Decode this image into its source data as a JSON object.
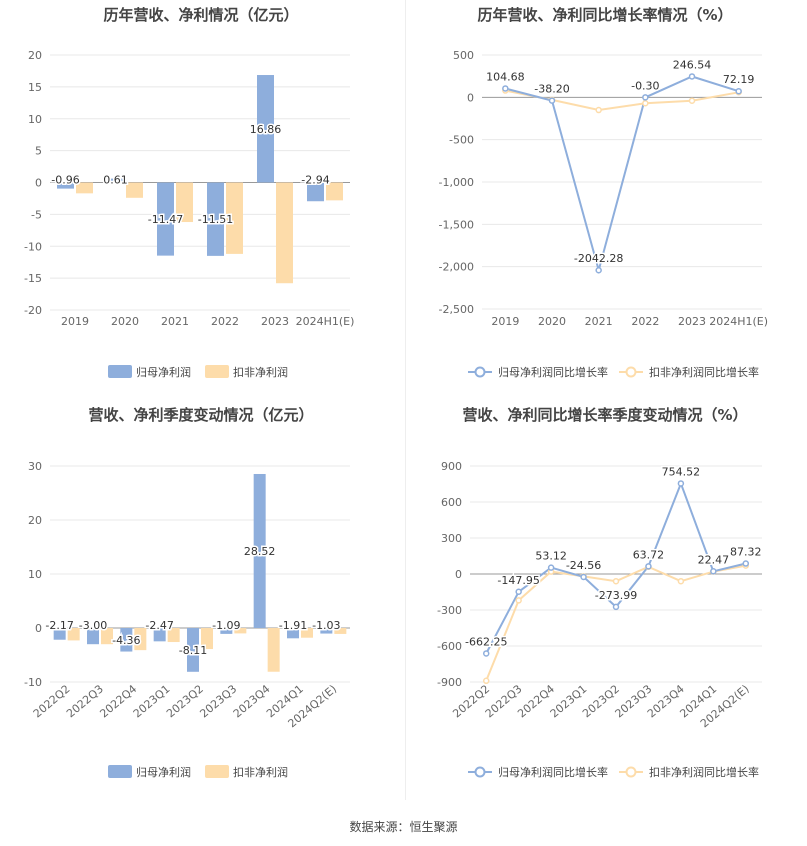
{
  "source_label": "数据来源：恒生聚源",
  "colors": {
    "blue": "#8eaedc",
    "orange": "#fddcaa",
    "line_blue": "#8eaedc",
    "line_orange": "#fddcaa"
  },
  "chart_data": [
    {
      "type": "bar",
      "title": "历年营收、净利情况（亿元）",
      "categories": [
        "2019",
        "2020",
        "2021",
        "2022",
        "2023",
        "2024H1(E)"
      ],
      "series": [
        {
          "name": "归母净利润",
          "values": [
            -0.96,
            0.61,
            -11.47,
            -11.51,
            16.86,
            -2.94
          ]
        },
        {
          "name": "扣非净利润",
          "values": [
            -1.7,
            -2.4,
            -6.2,
            -11.2,
            -15.8,
            -2.8
          ]
        }
      ],
      "data_labels": [
        "-0.96",
        "0.61",
        "-11.47",
        "-11.51",
        "16.86",
        "-2.94"
      ],
      "ylim": [
        -20,
        20
      ],
      "yticks": [
        "20",
        "15",
        "10",
        "5",
        "0",
        "-5",
        "-10",
        "-15",
        "-20"
      ],
      "ytick_values": [
        20,
        15,
        10,
        5,
        0,
        -5,
        -10,
        -15,
        -20
      ],
      "legend": "bottom"
    },
    {
      "type": "line",
      "title": "历年营收、净利同比增长率情况（%）",
      "categories": [
        "2019",
        "2020",
        "2021",
        "2022",
        "2023",
        "2024H1(E)"
      ],
      "series": [
        {
          "name": "归母净利润同比增长率",
          "values": [
            104.68,
            -38.2,
            -2042.28,
            -0.3,
            246.54,
            72.19
          ]
        },
        {
          "name": "扣非净利润同比增长率",
          "values": [
            80,
            -30,
            -150,
            -70,
            -40,
            60
          ]
        }
      ],
      "data_labels": [
        "104.68",
        "-38.20",
        "-2042.28",
        "-0.30",
        "246.54",
        "72.19"
      ],
      "ylim": [
        -2500,
        500
      ],
      "yticks": [
        "500",
        "0",
        "-500",
        "-1,000",
        "-1,500",
        "-2,000",
        "-2,500"
      ],
      "ytick_values": [
        500,
        0,
        -500,
        -1000,
        -1500,
        -2000,
        -2500
      ],
      "legend": "bottom"
    },
    {
      "type": "bar",
      "title": "营收、净利季度变动情况（亿元）",
      "categories": [
        "2022Q2",
        "2022Q3",
        "2022Q4",
        "2023Q1",
        "2023Q2",
        "2023Q3",
        "2023Q4",
        "2024Q1",
        "2024Q2(E)"
      ],
      "series": [
        {
          "name": "归母净利润",
          "values": [
            -2.17,
            -3.0,
            -4.36,
            -2.47,
            -8.11,
            -1.09,
            28.52,
            -1.91,
            -1.03
          ]
        },
        {
          "name": "扣非净利润",
          "values": [
            -2.3,
            -3.0,
            -4.1,
            -2.6,
            -3.9,
            -1.0,
            -8.1,
            -1.8,
            -1.1
          ]
        }
      ],
      "data_labels": [
        "-2.17",
        "-3.00",
        "-4.36",
        "-2.47",
        "-8.11",
        "-1.09",
        "28.52",
        "-1.91",
        "-1.03"
      ],
      "ylim": [
        -10,
        30
      ],
      "yticks": [
        "30",
        "20",
        "10",
        "0",
        "-10"
      ],
      "ytick_values": [
        30,
        20,
        10,
        0,
        -10
      ],
      "legend": "bottom"
    },
    {
      "type": "line",
      "title": "营收、净利同比增长率季度变动情况（%）",
      "categories": [
        "2022Q2",
        "2022Q3",
        "2022Q4",
        "2023Q1",
        "2023Q2",
        "2023Q3",
        "2023Q4",
        "2024Q1",
        "2024Q2(E)"
      ],
      "series": [
        {
          "name": "归母净利润同比增长率",
          "values": [
            -662.25,
            -147.95,
            53.12,
            -24.56,
            -273.99,
            63.72,
            754.52,
            22.47,
            87.32
          ]
        },
        {
          "name": "扣非净利润同比增长率",
          "values": [
            -890,
            -220,
            20,
            -20,
            -60,
            60,
            -60,
            20,
            70
          ]
        }
      ],
      "data_labels": [
        "-662.25",
        "-147.95",
        "53.12",
        "-24.56",
        "-273.99",
        "63.72",
        "754.52",
        "22.47",
        "87.32"
      ],
      "ylim": [
        -900,
        900
      ],
      "yticks": [
        "900",
        "600",
        "300",
        "0",
        "-300",
        "-600",
        "-900"
      ],
      "ytick_values": [
        900,
        600,
        300,
        0,
        -300,
        -600,
        -900
      ],
      "legend": "bottom"
    }
  ]
}
